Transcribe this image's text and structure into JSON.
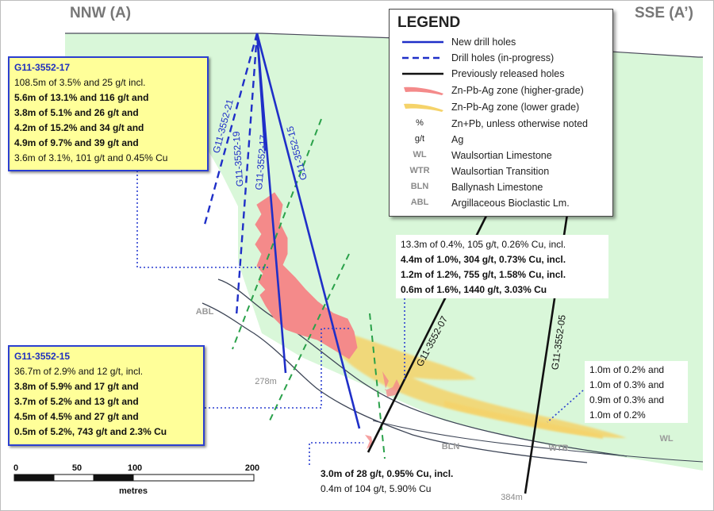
{
  "header": {
    "left_label": "NNW (A)",
    "right_label": "SSE (A’)"
  },
  "legend": {
    "title": "LEGEND",
    "items": [
      {
        "symbol": "solid-blue-line",
        "text": "New drill holes"
      },
      {
        "symbol": "dashed-blue-line",
        "text": "Drill holes (in-progress)"
      },
      {
        "symbol": "solid-black-line",
        "text": "Previously released holes"
      },
      {
        "symbol": "pink-brush",
        "text": "Zn-Pb-Ag zone (higher-grade)"
      },
      {
        "symbol": "yellow-brush",
        "text": "Zn-Pb-Ag zone (lower grade)"
      },
      {
        "abbr": "%",
        "text": "Zn+Pb, unless otherwise noted"
      },
      {
        "abbr": "g/t",
        "text": "Ag"
      },
      {
        "abbr": "WL",
        "text": "Waulsortian Limestone"
      },
      {
        "abbr": "WTR",
        "text": "Waulsortian Transition"
      },
      {
        "abbr": "BLN",
        "text": "Ballynash Limestone"
      },
      {
        "abbr": "ABL",
        "text": "Argillaceous Bioclastic Lm."
      }
    ]
  },
  "box_17": {
    "title": "G11-3552-17",
    "lines": [
      "108.5m of 3.5% and 25 g/t incl.",
      "5.6m of 13.1% and 116 g/t and",
      "3.8m of 5.1% and 26 g/t and",
      "4.2m of 15.2% and 34 g/t and",
      "4.9m of 9.7% and 39 g/t and",
      "3.6m of 3.1%, 101 g/t and 0.45% Cu"
    ]
  },
  "box_15": {
    "title": "G11-3552-15",
    "lines": [
      "36.7m of 2.9% and 12 g/t, incl.",
      "3.8m of 5.9% and 17 g/t and",
      "3.7m of 5.2% and 13 g/t and",
      "4.5m of 4.5% and 27 g/t and",
      "0.5m of 5.2%, 743 g/t and 2.3% Cu"
    ]
  },
  "box_07": {
    "lines": [
      "13.3m of 0.4%, 105 g/t, 0.26% Cu, incl.",
      "4.4m of 1.0%, 304 g/t, 0.73% Cu, incl.",
      "1.2m of 1.2%, 755 g/t, 1.58% Cu, incl.",
      "0.6m of 1.6%, 1440 g/t, 3.03% Cu"
    ]
  },
  "box_05": {
    "lines": [
      "1.0m of 0.2% and",
      "1.0m of 0.3% and",
      "0.9m of 0.3% and",
      "1.0m of 0.2%"
    ]
  },
  "box_bottom": {
    "lines": [
      "3.0m of 28 g/t, 0.95% Cu, incl.",
      "0.4m of 104 g/t, 5.90% Cu"
    ]
  },
  "hole_labels": {
    "h21": "G11-3552-21",
    "h19": "G11-3552-19",
    "h17": "G11-3552-17",
    "h15": "G11-3552-15",
    "h07": "G11-3552-07",
    "h05": "G11-3552-05"
  },
  "unit_labels": {
    "abl": "ABL",
    "bln": "BLN",
    "wtr": "WTR",
    "wl": "WL"
  },
  "depth_labels": {
    "d278": "278m",
    "d384": "384m"
  },
  "scale": {
    "ticks": [
      "0",
      "50",
      "100",
      "200"
    ],
    "unit": "metres"
  },
  "colors": {
    "host_green": "#d9f7d9",
    "new_hole_blue": "#1f2fc8",
    "prev_hole_black": "#111111",
    "high_grade_pink": "#f48a8a",
    "low_grade_yellow": "#f5d36a",
    "fault_green": "#2aa14a",
    "info_box_fill": "#ffff99",
    "info_box_border": "#2b3fd1"
  }
}
